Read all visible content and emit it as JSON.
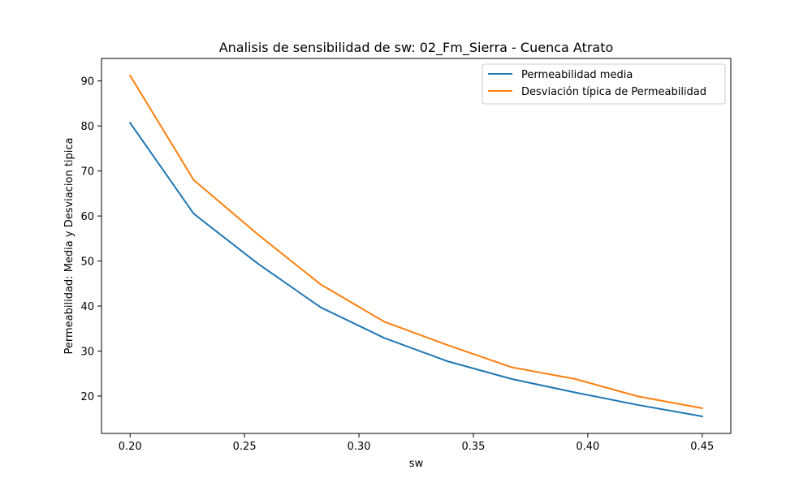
{
  "chart_data": {
    "type": "line",
    "title": "Analisis de sensibilidad de sw: 02_Fm_Sierra - Cuenca Atrato",
    "xlabel": "sw",
    "ylabel": "Permeabilidad: Media y Desviacion tipica",
    "x": [
      0.2,
      0.2278,
      0.2556,
      0.2833,
      0.3111,
      0.3389,
      0.3667,
      0.3944,
      0.4222,
      0.45
    ],
    "series": [
      {
        "name": "Permeabilidad media",
        "color": "#1f77b4",
        "values": [
          80.7,
          60.5,
          49.5,
          39.7,
          32.9,
          27.7,
          23.8,
          20.8,
          18.0,
          15.5
        ]
      },
      {
        "name": "Desviación típica de Permeabilidad",
        "color": "#ff7f0e",
        "values": [
          91.2,
          68.0,
          56.0,
          44.8,
          36.5,
          31.3,
          26.4,
          23.8,
          19.9,
          17.3
        ]
      }
    ],
    "xlim": [
      0.1875,
      0.4625
    ],
    "ylim": [
      11.7,
      95.0
    ],
    "xticks": [
      {
        "value": 0.2,
        "label": "0.20"
      },
      {
        "value": 0.25,
        "label": "0.25"
      },
      {
        "value": 0.3,
        "label": "0.30"
      },
      {
        "value": 0.35,
        "label": "0.35"
      },
      {
        "value": 0.4,
        "label": "0.40"
      },
      {
        "value": 0.45,
        "label": "0.45"
      }
    ],
    "yticks": [
      {
        "value": 20,
        "label": "20"
      },
      {
        "value": 30,
        "label": "30"
      },
      {
        "value": 40,
        "label": "40"
      },
      {
        "value": 50,
        "label": "50"
      },
      {
        "value": 60,
        "label": "60"
      },
      {
        "value": 70,
        "label": "70"
      },
      {
        "value": 80,
        "label": "80"
      },
      {
        "value": 90,
        "label": "90"
      }
    ],
    "grid": false,
    "legend_position": "top-right"
  }
}
